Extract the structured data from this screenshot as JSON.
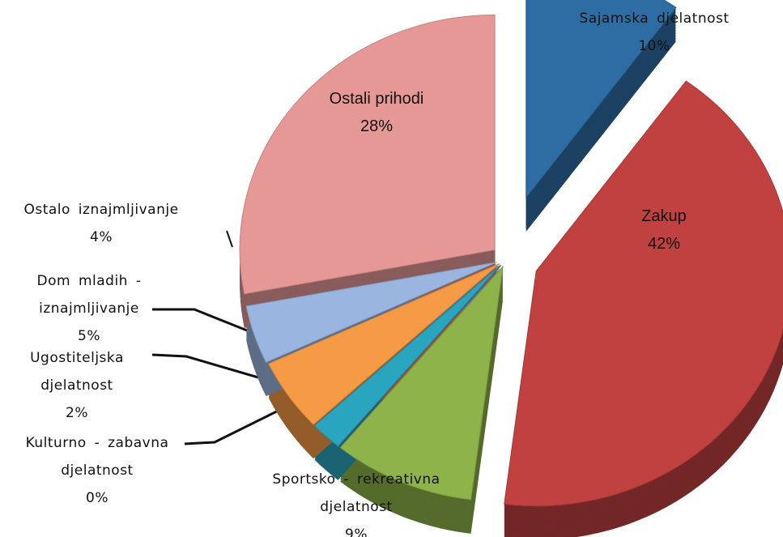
{
  "chart_data": {
    "type": "pie",
    "categories": [
      "Sajamska djelatnost",
      "Zakup",
      "Sportsko - rekreativna djelatnost",
      "Kulturno - zabavna djelatnost",
      "Ugostiteljska djelatnost",
      "Dom mladih - iznajmljivanje",
      "Ostalo iznajmljivanje",
      "Ostali prihodi"
    ],
    "values": [
      10,
      42,
      9,
      0,
      2,
      5,
      4,
      28
    ],
    "value_labels": [
      "10%",
      "42%",
      "9%",
      "0%",
      "2%",
      "5%",
      "4%",
      "28%"
    ],
    "colors": [
      "#2e6da4",
      "#c0413f",
      "#8db34a",
      "#6a4c93",
      "#2aa5c0",
      "#f59a45",
      "#9ab6e0",
      "#e59896"
    ]
  }
}
